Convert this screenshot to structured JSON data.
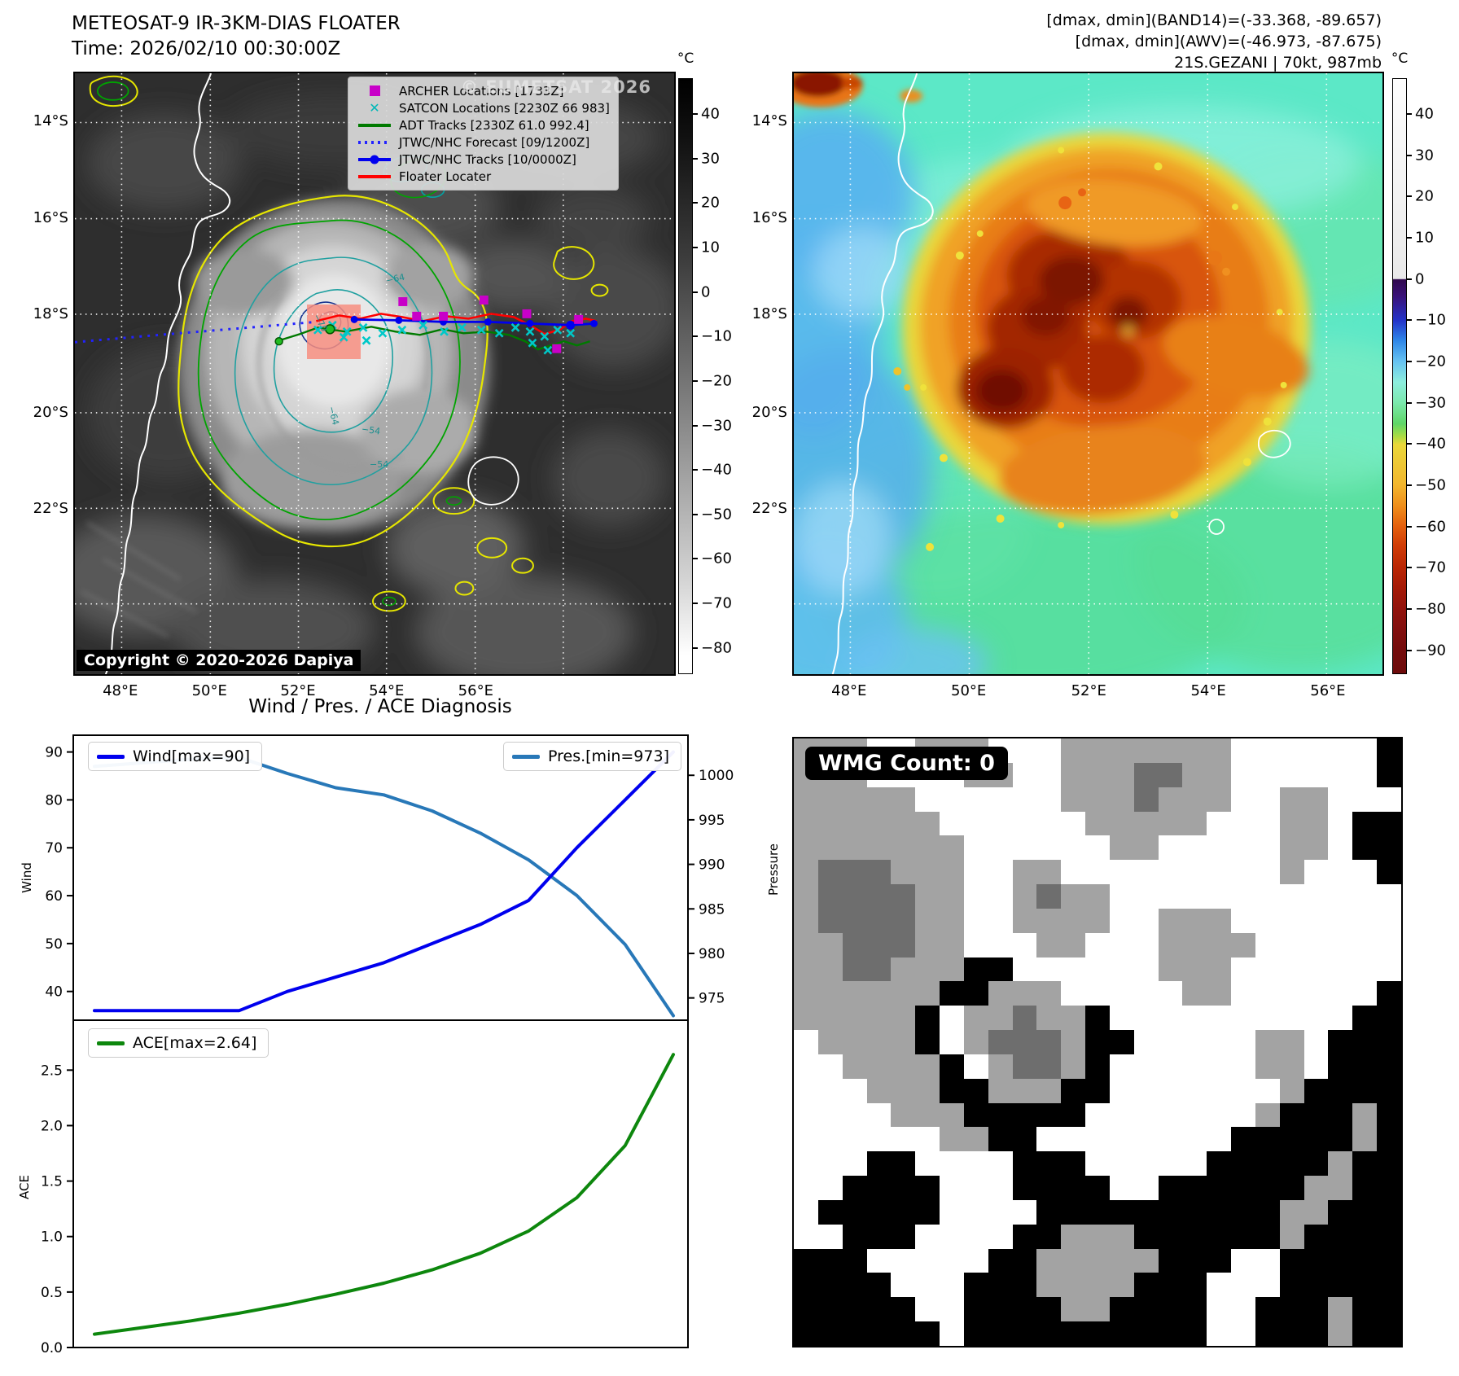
{
  "header_left": {
    "title": "METEOSAT-9 IR-3KM-DIAS FLOATER",
    "time": "Time: 2026/02/10 00:30:00Z"
  },
  "header_right": {
    "line1": "[dmax, dmin](BAND14)=(-33.368, -89.657)",
    "line2": "[dmax, dmin](AWV)=(-46.973, -87.675)",
    "line3": "21S.GEZANI | 70kt, 987mb"
  },
  "ir_panel": {
    "watermark": "© EUMETSAT 2026",
    "copyright": "Copyright © 2020-2026 Dapiya",
    "legend": [
      {
        "label": "ARCHER Locations [1733Z]",
        "marker": "square",
        "color": "#c800c8"
      },
      {
        "label": "SATCON Locations [2230Z 66 983]",
        "marker": "x",
        "color": "#00b8b8"
      },
      {
        "label": "ADT Tracks [2330Z 61.0 992.4]",
        "marker": "line",
        "color": "#007a00"
      },
      {
        "label": "JTWC/NHC Forecast [09/1200Z]",
        "marker": "dotted",
        "color": "#2222ff"
      },
      {
        "label": "JTWC/NHC Tracks [10/0000Z]",
        "marker": "line-marker",
        "color": "#0000ee"
      },
      {
        "label": "Floater Locater",
        "marker": "line",
        "color": "#ff0000"
      }
    ],
    "lat_labels": [
      "14°S",
      "16°S",
      "18°S",
      "20°S",
      "22°S"
    ],
    "lon_labels": [
      "48°E",
      "50°E",
      "52°E",
      "54°E",
      "56°E"
    ],
    "colorbar_unit": "°C",
    "colorbar_ticks": [
      "40",
      "30",
      "20",
      "10",
      "0",
      "−10",
      "−20",
      "−30",
      "−40",
      "−50",
      "−60",
      "−70",
      "−80"
    ],
    "contour_labels": [
      "−64",
      "−54",
      "−64",
      "−54",
      "−70"
    ]
  },
  "enh_panel": {
    "lat_labels": [
      "14°S",
      "16°S",
      "18°S",
      "20°S",
      "22°S"
    ],
    "lon_labels": [
      "48°E",
      "50°E",
      "52°E",
      "54°E",
      "56°E"
    ],
    "colorbar_unit": "°C",
    "colorbar_ticks": [
      "40",
      "30",
      "20",
      "10",
      "0",
      "−10",
      "−20",
      "−30",
      "−40",
      "−50",
      "−60",
      "−70",
      "−80",
      "−90"
    ]
  },
  "chart_data": [
    {
      "type": "line",
      "title": "Wind / Pres. / ACE Diagnosis",
      "x": [
        0,
        1,
        2,
        3,
        4,
        5,
        6,
        7,
        8,
        9,
        10,
        11,
        12
      ],
      "series": [
        {
          "name": "Wind[max=90]",
          "color": "#0000ee",
          "axis": "left",
          "values": [
            36,
            36,
            36,
            36,
            40,
            43,
            46,
            50,
            54,
            59,
            70,
            80,
            90
          ]
        },
        {
          "name": "Pres.[min=973]",
          "color": "#2878b8",
          "axis": "right",
          "values": [
            1001,
            1001.4,
            1001.8,
            1002,
            1000.2,
            998.6,
            997.8,
            996,
            993.5,
            990.5,
            986.5,
            981,
            973
          ]
        }
      ],
      "ylabel_left": "Wind",
      "ylabel_right": "Pressure",
      "yticks_left": [
        "40",
        "50",
        "60",
        "70",
        "80",
        "90"
      ],
      "yticks_right": [
        "975",
        "980",
        "985",
        "990",
        "995",
        "1000"
      ],
      "ylim_left": [
        34,
        93.5
      ],
      "ylim_right": [
        972.5,
        1004.5
      ],
      "grid": false,
      "legend_position": [
        "upper left",
        "upper right"
      ]
    },
    {
      "type": "line",
      "x": [
        0,
        1,
        2,
        3,
        4,
        5,
        6,
        7,
        8,
        9,
        10,
        11,
        12
      ],
      "series": [
        {
          "name": "ACE[max=2.64]",
          "color": "#0d870d",
          "values": [
            0.12,
            0.18,
            0.24,
            0.31,
            0.39,
            0.48,
            0.58,
            0.7,
            0.85,
            1.05,
            1.35,
            1.82,
            2.64
          ]
        }
      ],
      "ylabel": "ACE",
      "yticks": [
        "0.0",
        "0.5",
        "1.0",
        "1.5",
        "2.0",
        "2.5"
      ],
      "ylim": [
        0,
        2.95
      ],
      "grid": false,
      "legend_position": [
        "upper left"
      ]
    }
  ],
  "wmg_panel": {
    "label": "WMG Count: 0",
    "palette": {
      "W": "#ffffff",
      "G": "#a3a3a3",
      "D": "#6e6e6e",
      "B": "#000000"
    },
    "grid": [
      "GGGWWGGGWWWGGGGGGGWWWWWWB",
      "GGGWWWWGGWWGGGDDGGWWWWWWB",
      "GGGGGWWWWWWGGGDGGGWWGGWWW",
      "GGGGGGWWWWWWGGGGGWWWGGWBB",
      "GGGGGGGWWWWWWGGWWWWWGGWBB",
      "GDDDGGGWWGGWWWWWWWWWGWWWB",
      "GDDDDGGWWGDGGWWWWWWWWWWWW",
      "GDDDDGGWWGGGGWWGGGWWWWWWW",
      "GGDDDGGWWWGGWWWGGGGWWWWWW",
      "GGDDGGGBBWWWWWWGGGWWWWWWW",
      "GGGGGGBBGGGWWWWWGGWWWWWWB",
      "GGGGGBWGGDGGBWWWWWWWWWWBB",
      "WGGGGBWGDDDGBBWWWWWGGWBBB",
      "WWGGGGBWGDDGBWWWWWWGGWBBB",
      "WWWGGGBBGGGBBWWWWWWWGBBBB",
      "WWWWGGGBBBBBWWWWWWWGBBBGB",
      "WWWWWWGGBBWWWWWWWWBBBBBGB",
      "WWWBBWWWWBBBWWWWWBBBBBGBB",
      "WWBBBBWWWBBBBWWBBBBBBGGBB",
      "WBBBBBWWWWBBBBBBBBBBGGBBB",
      "WWBBBWWWWBBGGGBBBBBBGBBBB",
      "BBBWWWWWBBGGGGGBBBWWBBBBB",
      "BBBBWWWBBBGGGGBBBWWWBBBBB",
      "BBBBBWWBBBBGGBBBBWWBBBGBB",
      "BBBBBBWBBBBBBBBBBWWBBBGBB"
    ]
  }
}
